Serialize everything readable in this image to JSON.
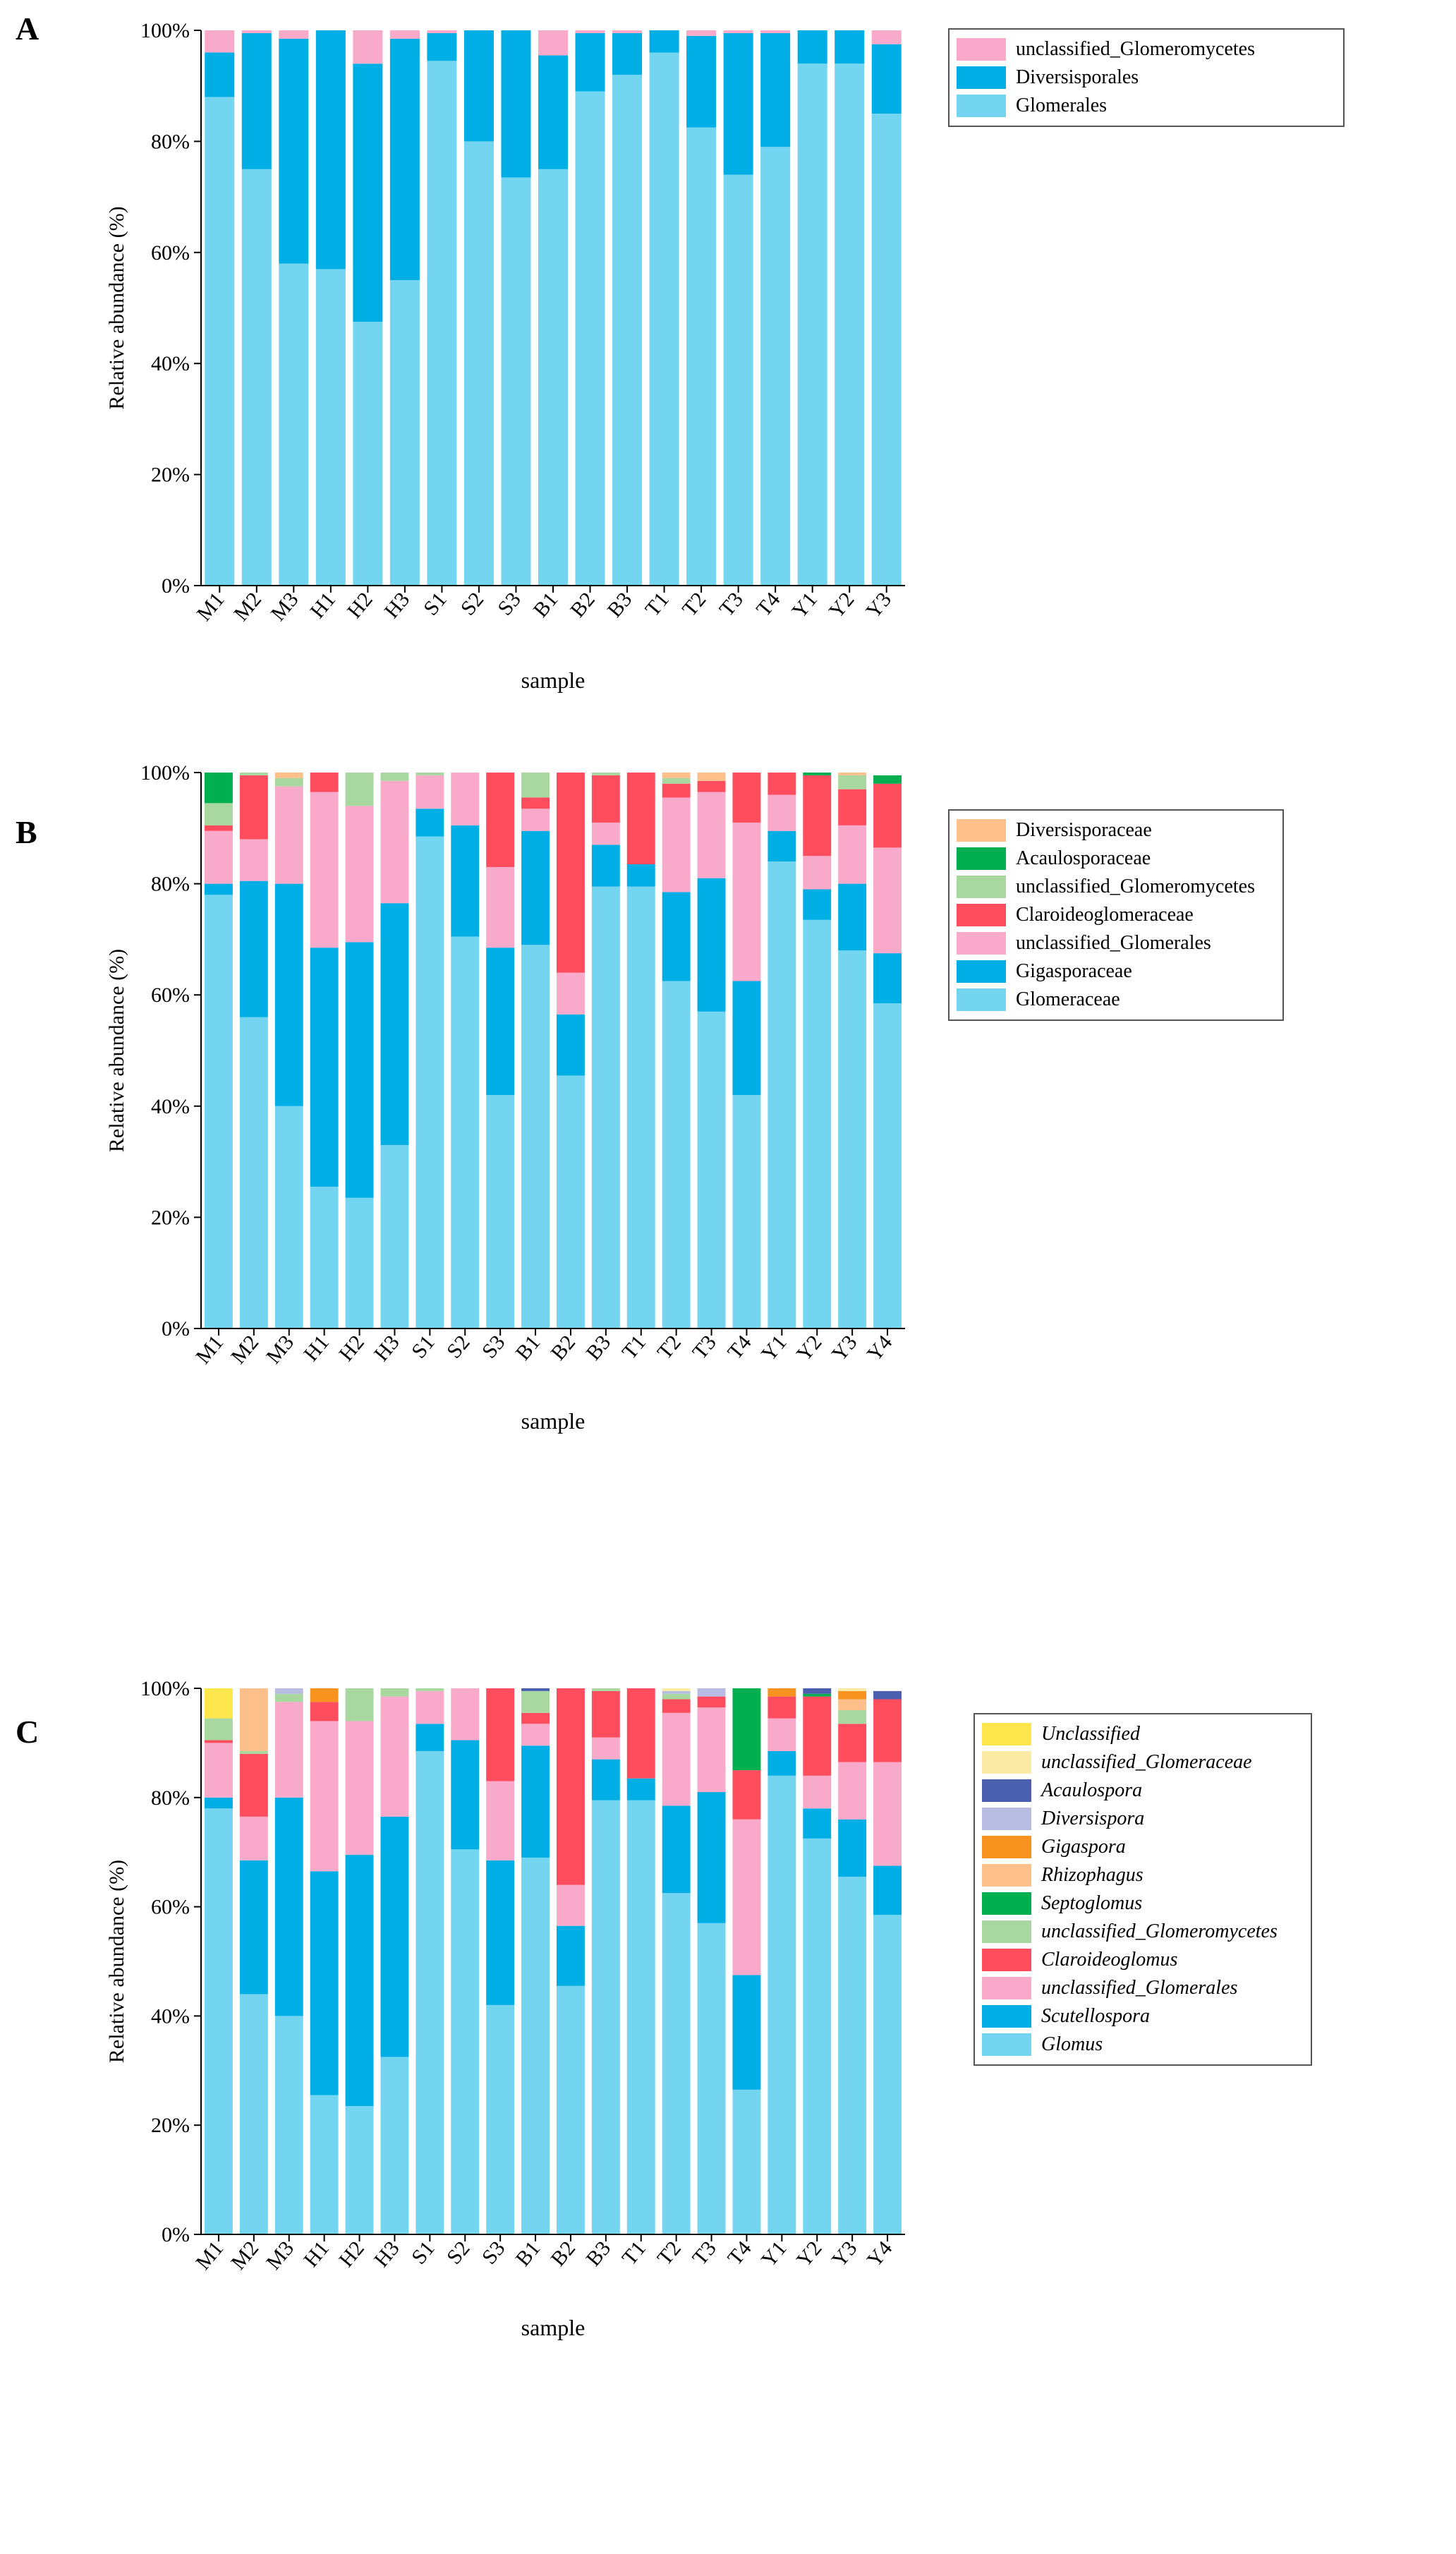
{
  "chart_data": [
    {
      "type": "bar",
      "stacked": true,
      "panel_label": "A",
      "xlabel": "sample",
      "ylabel": "Relative abundance (%)",
      "ylim": [
        0,
        100
      ],
      "yticks": [
        "0%",
        "20%",
        "40%",
        "60%",
        "80%",
        "100%"
      ],
      "legend_italic": false,
      "categories": [
        "M1",
        "M2",
        "M3",
        "H1",
        "H2",
        "H3",
        "S1",
        "S2",
        "S3",
        "B1",
        "B2",
        "B3",
        "T1",
        "T2",
        "T3",
        "T4",
        "Y1",
        "Y2",
        "Y3"
      ],
      "series": [
        {
          "name": "Glomerales",
          "color": "#74d5f1",
          "values": [
            88,
            75,
            58,
            57,
            47.5,
            55,
            94.5,
            80,
            73.5,
            75,
            89,
            92,
            96,
            82.5,
            74,
            79,
            94,
            94,
            85
          ]
        },
        {
          "name": "Diversisporales",
          "color": "#00aee6",
          "values": [
            8,
            24.5,
            40.5,
            43,
            46.5,
            43.5,
            5,
            20,
            26.5,
            20.5,
            10.5,
            7.5,
            4,
            16.5,
            25.5,
            20.5,
            6,
            6,
            12.5
          ]
        },
        {
          "name": "unclassified_Glomeromycetes",
          "color": "#f9a9c9",
          "values": [
            4,
            0.5,
            1.5,
            0,
            6,
            1.5,
            0.5,
            0,
            0,
            4.5,
            0.5,
            0.5,
            0,
            1,
            0.5,
            0.5,
            0,
            0,
            2.5
          ]
        }
      ]
    },
    {
      "type": "bar",
      "stacked": true,
      "panel_label": "B",
      "xlabel": "sample",
      "ylabel": "Relative abundance (%)",
      "ylim": [
        0,
        100
      ],
      "yticks": [
        "0%",
        "20%",
        "40%",
        "60%",
        "80%",
        "100%"
      ],
      "legend_italic": false,
      "categories": [
        "M1",
        "M2",
        "M3",
        "H1",
        "H2",
        "H3",
        "S1",
        "S2",
        "S3",
        "B1",
        "B2",
        "B3",
        "T1",
        "T2",
        "T3",
        "T4",
        "Y1",
        "Y2",
        "Y3",
        "Y4"
      ],
      "series": [
        {
          "name": "Glomeraceae",
          "color": "#74d5f1",
          "values": [
            78,
            56,
            40,
            25.5,
            23.5,
            33,
            88.5,
            70.5,
            42,
            69,
            45.5,
            79.5,
            79.5,
            62.5,
            57,
            42,
            84,
            73.5,
            68,
            58.5
          ]
        },
        {
          "name": "Gigasporaceae",
          "color": "#00aee6",
          "values": [
            2,
            24.5,
            40,
            43,
            46,
            43.5,
            5,
            20,
            26.5,
            20.5,
            11,
            7.5,
            4,
            16,
            24,
            20.5,
            5.5,
            5.5,
            12,
            9
          ]
        },
        {
          "name": "unclassified_Glomerales",
          "color": "#f9a9c9",
          "values": [
            9.5,
            7.5,
            17.5,
            28,
            24.5,
            22,
            6,
            9.5,
            14.5,
            4,
            7.5,
            4,
            0,
            17,
            15.5,
            28.5,
            6.5,
            6,
            10.5,
            19
          ]
        },
        {
          "name": "Claroideoglomeraceae",
          "color": "#ff4d5e",
          "values": [
            1,
            11.5,
            0,
            3.5,
            0,
            0,
            0,
            0,
            17,
            2,
            36,
            8.5,
            16.5,
            2.5,
            2,
            9,
            4,
            14.5,
            6.5,
            11.5
          ]
        },
        {
          "name": "unclassified_Glomeromycetes",
          "color": "#a8d8a0",
          "values": [
            4,
            0.5,
            1.5,
            0,
            6,
            1.5,
            0.5,
            0,
            0,
            4.5,
            0,
            0.5,
            0,
            1,
            0,
            0,
            0,
            0,
            2.5,
            0
          ]
        },
        {
          "name": "Acaulosporaceae",
          "color": "#00b050",
          "values": [
            5.5,
            0,
            0,
            0,
            0,
            0,
            0,
            0,
            0,
            0,
            0,
            0,
            0,
            0,
            0,
            0,
            0,
            0.5,
            0,
            1.5
          ]
        },
        {
          "name": "Diversisporaceae",
          "color": "#fdc08a",
          "values": [
            0,
            0,
            1,
            0,
            0,
            0,
            0,
            0,
            0,
            0,
            0,
            0,
            0,
            1,
            1.5,
            0,
            0,
            0,
            0.5,
            0
          ]
        }
      ]
    },
    {
      "type": "bar",
      "stacked": true,
      "panel_label": "C",
      "xlabel": "sample",
      "ylabel": "Relative abundance (%)",
      "ylim": [
        0,
        100
      ],
      "yticks": [
        "0%",
        "20%",
        "40%",
        "60%",
        "80%",
        "100%"
      ],
      "legend_italic": true,
      "categories": [
        "M1",
        "M2",
        "M3",
        "H1",
        "H2",
        "H3",
        "S1",
        "S2",
        "S3",
        "B1",
        "B2",
        "B3",
        "T1",
        "T2",
        "T3",
        "T4",
        "Y1",
        "Y2",
        "Y3",
        "Y4"
      ],
      "series": [
        {
          "name": "Glomus",
          "color": "#74d5f1",
          "values": [
            78,
            44,
            40,
            25.5,
            23.5,
            32.5,
            88.5,
            70.5,
            42,
            69,
            45.5,
            79.5,
            79.5,
            62.5,
            57,
            26.5,
            84,
            72.5,
            65.5,
            58.5
          ]
        },
        {
          "name": "Scutellospora",
          "color": "#00aee6",
          "values": [
            2,
            24.5,
            40,
            41,
            46,
            44,
            5,
            20,
            26.5,
            20.5,
            11,
            7.5,
            4,
            16,
            24,
            21,
            4.5,
            5.5,
            10.5,
            9
          ]
        },
        {
          "name": "unclassified_Glomerales",
          "color": "#f9a9c9",
          "values": [
            10,
            8,
            17.5,
            27.5,
            24.5,
            22,
            6,
            9.5,
            14.5,
            4,
            7.5,
            4,
            0,
            17,
            15.5,
            28.5,
            6,
            6,
            10.5,
            19
          ]
        },
        {
          "name": "Claroideoglomus",
          "color": "#ff4d5e",
          "values": [
            0.5,
            11.5,
            0,
            3.5,
            0,
            0,
            0,
            0,
            17,
            2,
            36,
            8.5,
            16.5,
            2.5,
            2,
            9,
            4,
            14.5,
            7,
            11.5
          ]
        },
        {
          "name": "unclassified_Glomeromycetes",
          "color": "#a8d8a0",
          "values": [
            4,
            0.5,
            1.5,
            0,
            6,
            1.5,
            0.5,
            0,
            0,
            4,
            0,
            0.5,
            0,
            1,
            0,
            0,
            0,
            0,
            2.5,
            0
          ]
        },
        {
          "name": "Septoglomus",
          "color": "#00b050",
          "values": [
            0,
            0,
            0,
            0,
            0,
            0,
            0,
            0,
            0,
            0,
            0,
            0,
            0,
            0,
            0,
            15,
            0,
            0.5,
            0,
            0
          ]
        },
        {
          "name": "Rhizophagus",
          "color": "#fdc08a",
          "values": [
            0,
            11.5,
            0,
            0,
            0,
            0,
            0,
            0,
            0,
            0,
            0,
            0,
            0,
            0,
            0,
            0,
            0,
            0,
            2,
            0
          ]
        },
        {
          "name": "Gigaspora",
          "color": "#f7931e",
          "values": [
            0,
            0,
            0,
            2.5,
            0,
            0,
            0,
            0,
            0,
            0,
            0,
            0,
            0,
            0,
            0,
            0,
            1.5,
            0,
            1.5,
            0
          ]
        },
        {
          "name": "Diversispora",
          "color": "#b8bce2",
          "values": [
            0,
            0,
            1,
            0,
            0,
            0,
            0,
            0,
            0,
            0,
            0,
            0,
            0,
            0.5,
            1.5,
            0,
            0,
            0,
            0,
            0
          ]
        },
        {
          "name": "Acaulospora",
          "color": "#4a5fad",
          "values": [
            0,
            0,
            0,
            0,
            0,
            0,
            0,
            0,
            0,
            0.5,
            0,
            0,
            0,
            0,
            0,
            0,
            0,
            1,
            0,
            1.5
          ]
        },
        {
          "name": "unclassified_Glomeraceae",
          "color": "#fbeba5",
          "values": [
            0,
            0,
            0,
            0,
            0,
            0,
            0,
            0,
            0,
            0,
            0,
            0,
            0,
            0.5,
            0,
            0,
            0,
            0,
            0.5,
            0
          ]
        },
        {
          "name": "Unclassified",
          "color": "#fde74c",
          "values": [
            5.5,
            0,
            0,
            0,
            0,
            0,
            0,
            0,
            0,
            0,
            0,
            0,
            0,
            0,
            0,
            0,
            0,
            0,
            0,
            0
          ]
        }
      ]
    }
  ]
}
